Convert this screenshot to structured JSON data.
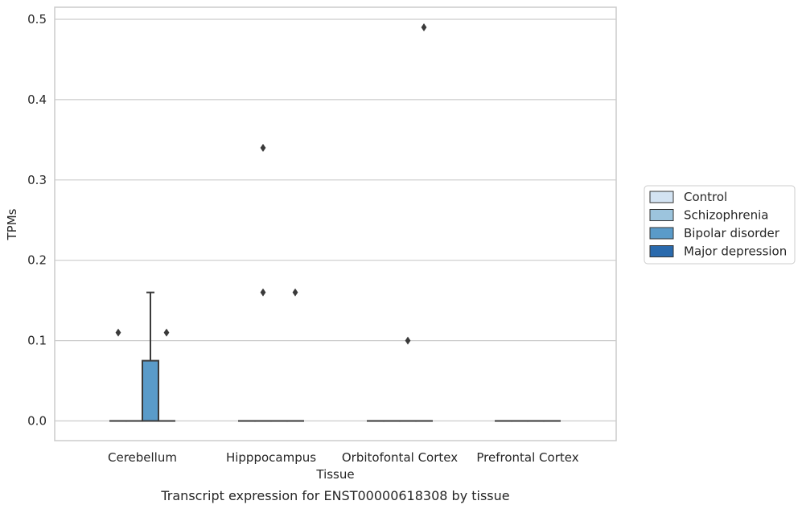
{
  "chart_data": {
    "type": "box",
    "title": "",
    "caption": "Transcript expression for ENST00000618308 by tissue",
    "xlabel": "Tissue",
    "ylabel": "TPMs",
    "ylim": [
      -0.0245,
      0.515
    ],
    "yticks": [
      0.0,
      0.1,
      0.2,
      0.3,
      0.4,
      0.5
    ],
    "ytick_labels": [
      "0.0",
      "0.1",
      "0.2",
      "0.3",
      "0.4",
      "0.5"
    ],
    "grid": "horizontal",
    "legend_position": "right",
    "categories": [
      "Cerebellum",
      "Hipppocampus",
      "Orbitofontal Cortex",
      "Prefrontal Cortex"
    ],
    "series": [
      {
        "name": "Control",
        "color": "#d3e3f2",
        "boxes": [
          {
            "q1": 0,
            "median": 0,
            "q3": 0,
            "whisker_low": 0,
            "whisker_high": 0,
            "outliers": [
              0.11
            ]
          },
          {
            "q1": 0,
            "median": 0,
            "q3": 0,
            "whisker_low": 0,
            "whisker_high": 0,
            "outliers": []
          },
          {
            "q1": 0,
            "median": 0,
            "q3": 0,
            "whisker_low": 0,
            "whisker_high": 0,
            "outliers": []
          },
          {
            "q1": 0,
            "median": 0,
            "q3": 0,
            "whisker_low": 0,
            "whisker_high": 0,
            "outliers": []
          }
        ]
      },
      {
        "name": "Schizophrenia",
        "color": "#9cc4dd",
        "boxes": [
          {
            "q1": 0,
            "median": 0,
            "q3": 0,
            "whisker_low": 0,
            "whisker_high": 0,
            "outliers": []
          },
          {
            "q1": 0,
            "median": 0,
            "q3": 0,
            "whisker_low": 0,
            "whisker_high": 0,
            "outliers": [
              0.34,
              0.16
            ]
          },
          {
            "q1": 0,
            "median": 0,
            "q3": 0,
            "whisker_low": 0,
            "whisker_high": 0,
            "outliers": []
          },
          {
            "q1": 0,
            "median": 0,
            "q3": 0,
            "whisker_low": 0,
            "whisker_high": 0,
            "outliers": []
          }
        ]
      },
      {
        "name": "Bipolar disorder",
        "color": "#5a9bc9",
        "boxes": [
          {
            "q1": 0,
            "median": 0,
            "q3": 0.075,
            "whisker_low": 0,
            "whisker_high": 0.16,
            "outliers": []
          },
          {
            "q1": 0,
            "median": 0,
            "q3": 0,
            "whisker_low": 0,
            "whisker_high": 0,
            "outliers": []
          },
          {
            "q1": 0,
            "median": 0,
            "q3": 0,
            "whisker_low": 0,
            "whisker_high": 0,
            "outliers": [
              0.1
            ]
          },
          {
            "q1": 0,
            "median": 0,
            "q3": 0,
            "whisker_low": 0,
            "whisker_high": 0,
            "outliers": []
          }
        ]
      },
      {
        "name": "Major depression",
        "color": "#2a6aad",
        "boxes": [
          {
            "q1": 0,
            "median": 0,
            "q3": 0,
            "whisker_low": 0,
            "whisker_high": 0,
            "outliers": [
              0.11
            ]
          },
          {
            "q1": 0,
            "median": 0,
            "q3": 0,
            "whisker_low": 0,
            "whisker_high": 0,
            "outliers": [
              0.16
            ]
          },
          {
            "q1": 0,
            "median": 0,
            "q3": 0,
            "whisker_low": 0,
            "whisker_high": 0,
            "outliers": [
              0.49
            ]
          },
          {
            "q1": 0,
            "median": 0,
            "q3": 0,
            "whisker_low": 0,
            "whisker_high": 0,
            "outliers": []
          }
        ]
      }
    ]
  }
}
